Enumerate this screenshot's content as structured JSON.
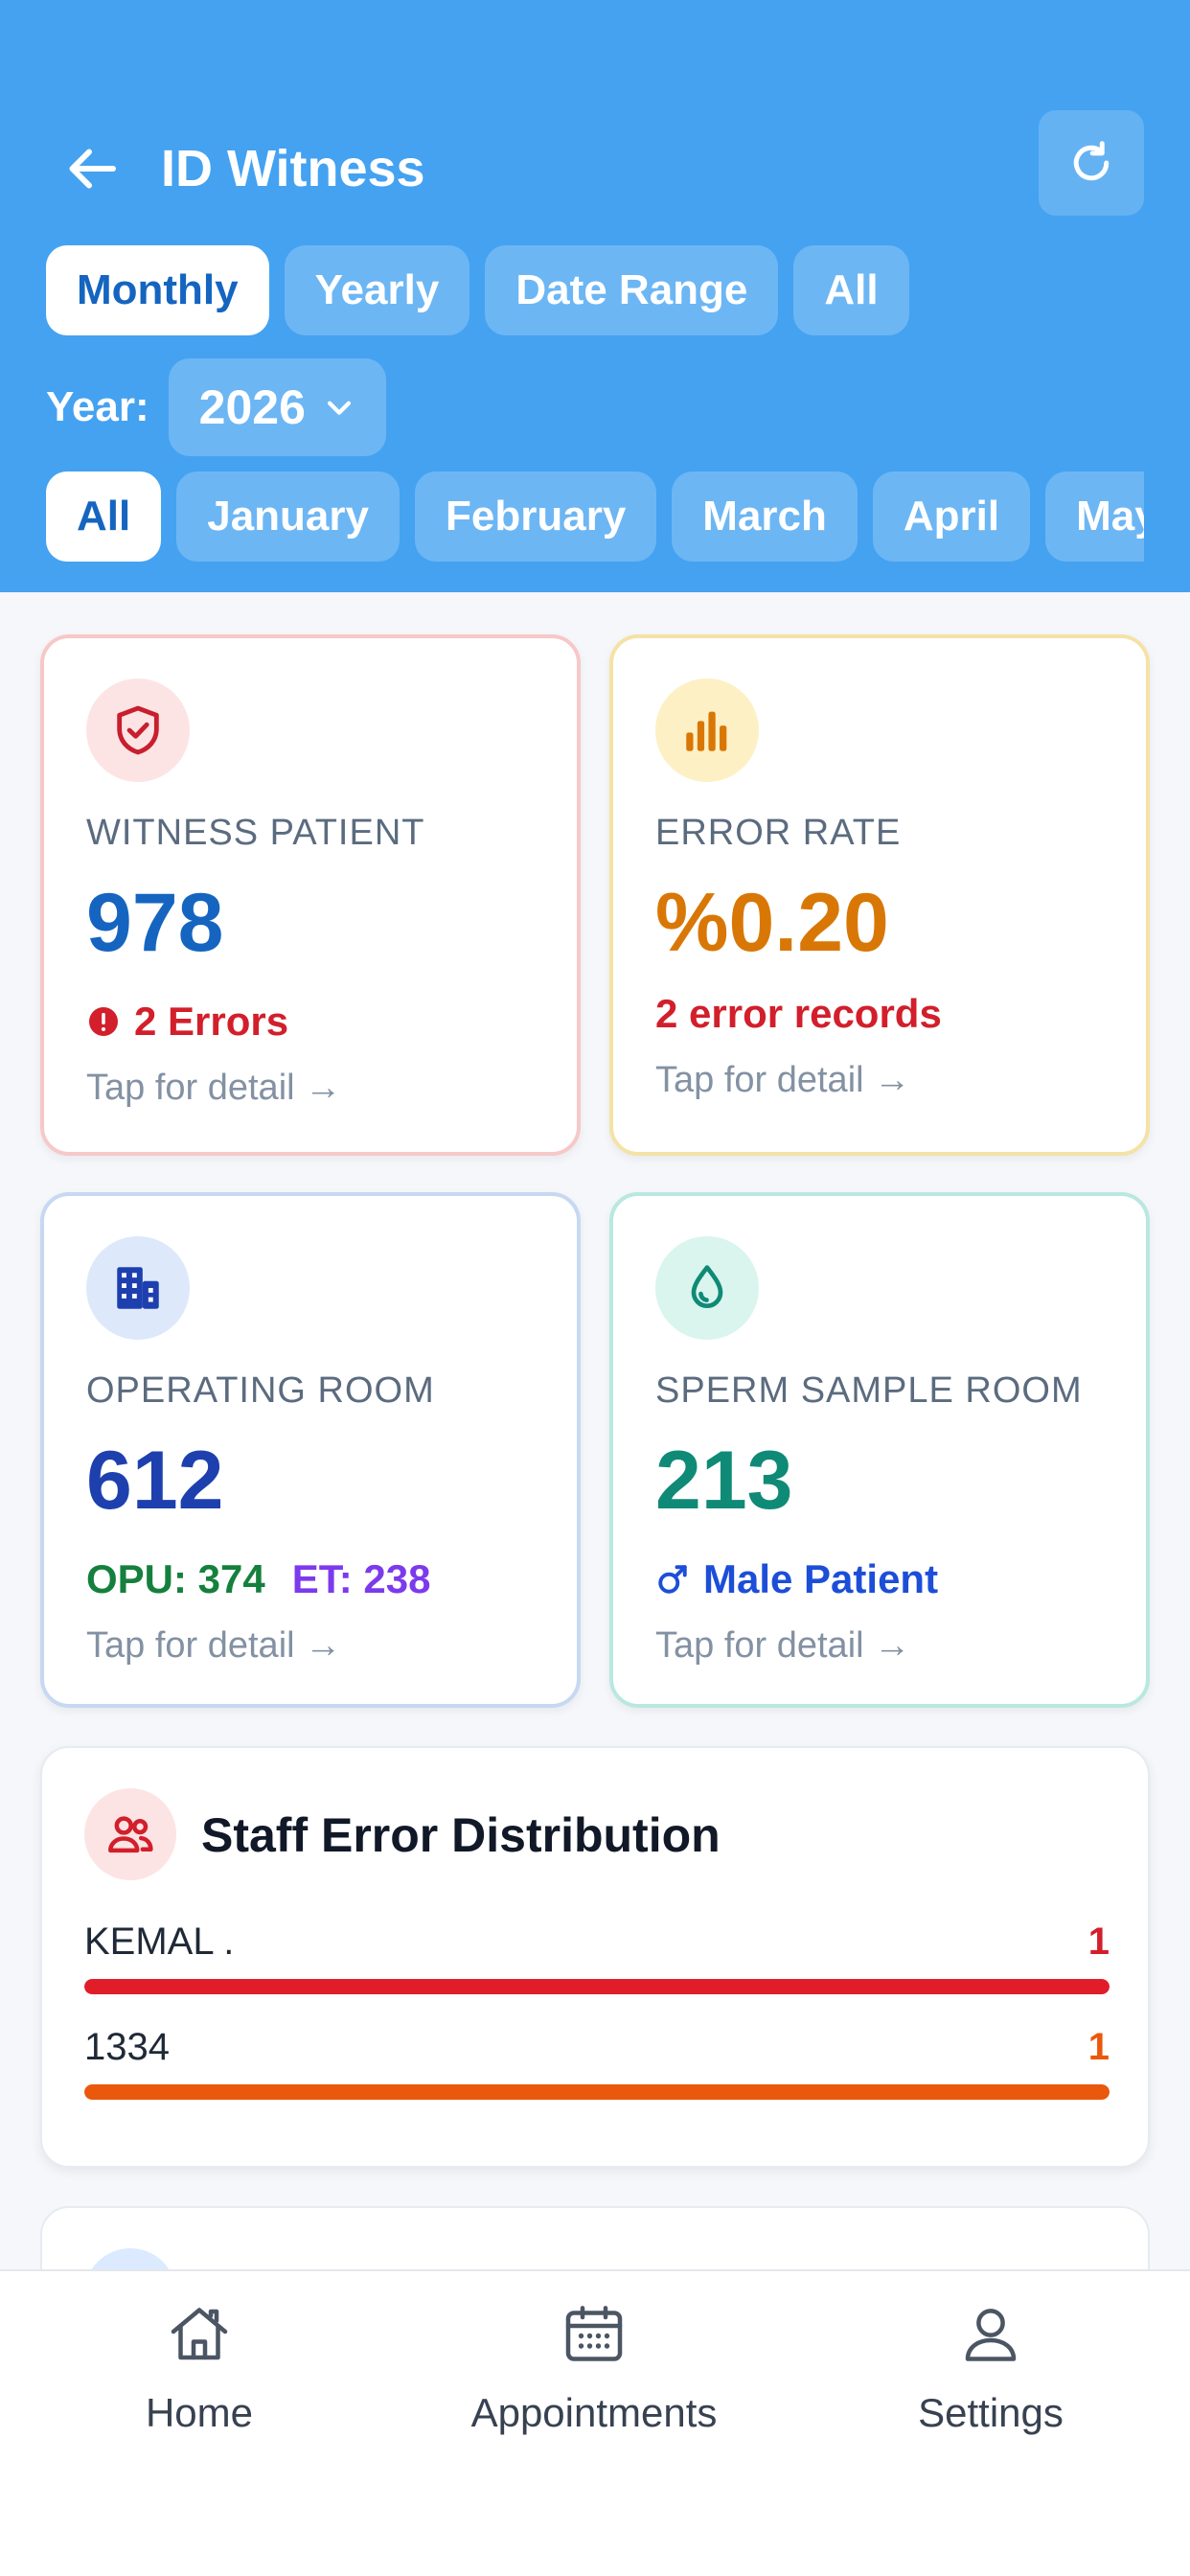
{
  "header": {
    "title": "ID Witness",
    "period_tabs": [
      {
        "label": "Monthly",
        "active": true
      },
      {
        "label": "Yearly",
        "active": false
      },
      {
        "label": "Date Range",
        "active": false
      },
      {
        "label": "All",
        "active": false
      }
    ],
    "year_label": "Year:",
    "year_value": "2026",
    "month_tabs": [
      {
        "label": "All",
        "active": true
      },
      {
        "label": "January",
        "active": false
      },
      {
        "label": "February",
        "active": false
      },
      {
        "label": "March",
        "active": false
      },
      {
        "label": "April",
        "active": false
      },
      {
        "label": "May",
        "active": false
      }
    ]
  },
  "cards": {
    "witness": {
      "label": "WITNESS PATIENT",
      "value": "978",
      "sub": "2 Errors",
      "tap": "Tap for detail →",
      "icon": "shield-check-icon"
    },
    "error_rate": {
      "label": "ERROR RATE",
      "value": "%0.20",
      "sub": "2 error records",
      "tap": "Tap for detail →",
      "icon": "bar-chart-icon"
    },
    "operating_room": {
      "label": "OPERATING ROOM",
      "value": "612",
      "opu": "OPU: 374",
      "et": "ET: 238",
      "tap": "Tap for detail →",
      "icon": "building-icon"
    },
    "sperm_room": {
      "label": "SPERM SAMPLE ROOM",
      "value": "213",
      "sub": "Male Patient",
      "tap": "Tap for detail →",
      "icon": "droplet-icon"
    }
  },
  "staff_errors": {
    "title": "Staff Error Distribution",
    "rows": [
      {
        "name": "KEMAL .",
        "count": "1",
        "fraction": 1.0,
        "color": "#e11d2a"
      },
      {
        "name": "1334",
        "count": "1",
        "fraction": 1.0,
        "color": "#ea580c"
      }
    ]
  },
  "bottom_nav": {
    "home": "Home",
    "appointments": "Appointments",
    "settings": "Settings"
  },
  "colors": {
    "header_bg": "#44a2f1",
    "primary_blue": "#1565c0",
    "error_red": "#d21f2b",
    "warning_orange": "#d97706",
    "operating_blue": "#1e40af",
    "teal": "#0f8a76",
    "opu_green": "#15803d",
    "et_purple": "#7c3aed"
  }
}
